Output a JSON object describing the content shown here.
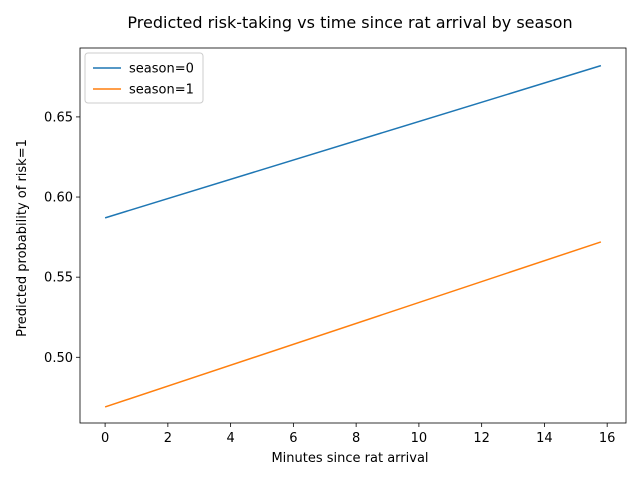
{
  "chart_data": {
    "type": "line",
    "title": "Predicted risk-taking vs time since rat arrival by season",
    "xlabel": "Minutes since rat arrival",
    "ylabel": "Predicted probability of risk=1",
    "xlim": [
      -0.8,
      16.6
    ],
    "ylim": [
      0.459,
      0.693
    ],
    "xticks": [
      0,
      2,
      4,
      6,
      8,
      10,
      12,
      14,
      16
    ],
    "yticks": [
      0.5,
      0.55,
      0.6,
      0.65
    ],
    "ytick_labels": [
      "0.50",
      "0.55",
      "0.60",
      "0.65"
    ],
    "grid": false,
    "legend_position": "upper-left",
    "series": [
      {
        "name": "season=0",
        "color": "#1f77b4",
        "x": [
          0,
          15.8
        ],
        "y": [
          0.587,
          0.682
        ]
      },
      {
        "name": "season=1",
        "color": "#ff7f0e",
        "x": [
          0,
          15.8
        ],
        "y": [
          0.469,
          0.572
        ]
      }
    ]
  }
}
